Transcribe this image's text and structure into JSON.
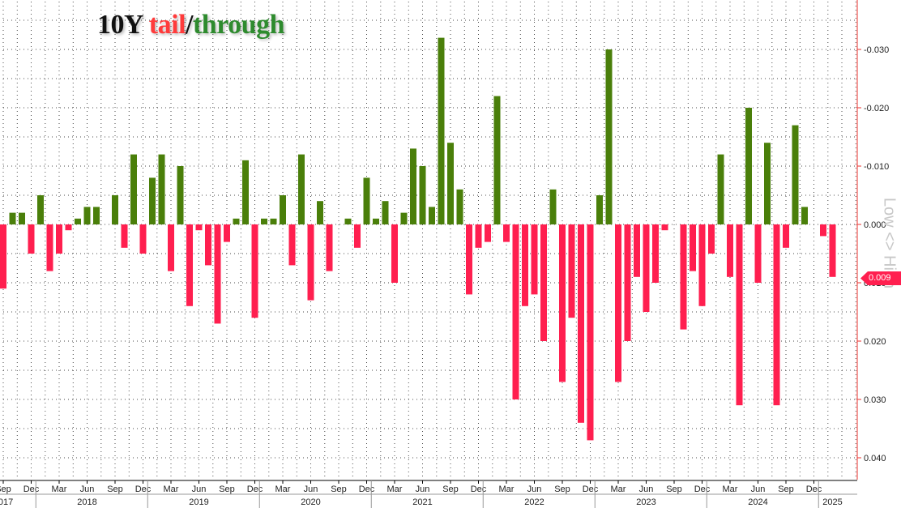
{
  "title": {
    "part1": "10Y ",
    "part2": "tail",
    "part3": "/",
    "part4": "through"
  },
  "axis_note": "Low <> High",
  "last_value_label": "0.009",
  "colors": {
    "tail": "#ff1f4f",
    "through": "#4a7f0a",
    "grid": "#4a4a4a",
    "axis": "#e8322e"
  },
  "chart_data": {
    "type": "bar",
    "title": "10Y tail/through",
    "y_axis_side": "right",
    "y_axis_inverted": true,
    "ylim": [
      -0.035,
      0.043
    ],
    "y_ticks": [
      -0.03,
      -0.02,
      -0.01,
      0.0,
      0.01,
      0.02,
      0.03,
      0.04
    ],
    "y_tick_labels": [
      "-0.030",
      "-0.020",
      "-0.010",
      "0.000",
      "0.010",
      "0.020",
      "0.030",
      "0.040"
    ],
    "grid": true,
    "x_start": "2017-09",
    "x_end": "2025-03",
    "month_labels": [
      {
        "date": "2017-09",
        "label": "Sep"
      },
      {
        "date": "2017-12",
        "label": "Dec"
      },
      {
        "date": "2018-03",
        "label": "Mar"
      },
      {
        "date": "2018-06",
        "label": "Jun"
      },
      {
        "date": "2018-09",
        "label": "Sep"
      },
      {
        "date": "2018-12",
        "label": "Dec"
      },
      {
        "date": "2019-03",
        "label": "Mar"
      },
      {
        "date": "2019-06",
        "label": "Jun"
      },
      {
        "date": "2019-09",
        "label": "Sep"
      },
      {
        "date": "2019-12",
        "label": "Dec"
      },
      {
        "date": "2020-03",
        "label": "Mar"
      },
      {
        "date": "2020-06",
        "label": "Jun"
      },
      {
        "date": "2020-09",
        "label": "Sep"
      },
      {
        "date": "2020-12",
        "label": "Dec"
      },
      {
        "date": "2021-03",
        "label": "Mar"
      },
      {
        "date": "2021-06",
        "label": "Jun"
      },
      {
        "date": "2021-09",
        "label": "Sep"
      },
      {
        "date": "2021-12",
        "label": "Dec"
      },
      {
        "date": "2022-03",
        "label": "Mar"
      },
      {
        "date": "2022-06",
        "label": "Jun"
      },
      {
        "date": "2022-09",
        "label": "Sep"
      },
      {
        "date": "2022-12",
        "label": "Dec"
      },
      {
        "date": "2023-03",
        "label": "Mar"
      },
      {
        "date": "2023-06",
        "label": "Jun"
      },
      {
        "date": "2023-09",
        "label": "Sep"
      },
      {
        "date": "2023-12",
        "label": "Dec"
      },
      {
        "date": "2024-03",
        "label": "Mar"
      },
      {
        "date": "2024-06",
        "label": "Jun"
      },
      {
        "date": "2024-09",
        "label": "Sep"
      },
      {
        "date": "2024-12",
        "label": "Dec"
      }
    ],
    "year_labels": [
      {
        "date": "2017-09",
        "label": "2017"
      },
      {
        "date": "2018-06",
        "label": "2018"
      },
      {
        "date": "2019-06",
        "label": "2019"
      },
      {
        "date": "2020-06",
        "label": "2020"
      },
      {
        "date": "2021-06",
        "label": "2021"
      },
      {
        "date": "2022-06",
        "label": "2022"
      },
      {
        "date": "2023-06",
        "label": "2023"
      },
      {
        "date": "2024-06",
        "label": "2024"
      },
      {
        "date": "2025-02",
        "label": "2025"
      }
    ],
    "year_dividers": [
      "2018-01",
      "2019-01",
      "2020-01",
      "2021-01",
      "2022-01",
      "2023-01",
      "2024-01",
      "2025-01"
    ],
    "series": [
      {
        "x": [
          "2017-09",
          "2017-10",
          "2017-11",
          "2017-12",
          "2018-01",
          "2018-02",
          "2018-03",
          "2018-04",
          "2018-05",
          "2018-06",
          "2018-07",
          "2018-08",
          "2018-09",
          "2018-10",
          "2018-11",
          "2018-12",
          "2019-01",
          "2019-02",
          "2019-03",
          "2019-04",
          "2019-05",
          "2019-06",
          "2019-07",
          "2019-08",
          "2019-09",
          "2019-10",
          "2019-11",
          "2019-12",
          "2020-01",
          "2020-02",
          "2020-03",
          "2020-04",
          "2020-05",
          "2020-06",
          "2020-07",
          "2020-08",
          "2020-09",
          "2020-10",
          "2020-11",
          "2020-12",
          "2021-01",
          "2021-02",
          "2021-03",
          "2021-04",
          "2021-05",
          "2021-06",
          "2021-07",
          "2021-08",
          "2021-09",
          "2021-10",
          "2021-11",
          "2021-12",
          "2022-01",
          "2022-02",
          "2022-03",
          "2022-04",
          "2022-05",
          "2022-06",
          "2022-07",
          "2022-08",
          "2022-09",
          "2022-10",
          "2022-11",
          "2022-12",
          "2023-01",
          "2023-02",
          "2023-03",
          "2023-04",
          "2023-05",
          "2023-06",
          "2023-07",
          "2023-08",
          "2023-09",
          "2023-10",
          "2023-11",
          "2023-12",
          "2024-01",
          "2024-02",
          "2024-03",
          "2024-04",
          "2024-05",
          "2024-06",
          "2024-07",
          "2024-08",
          "2024-09",
          "2024-10",
          "2024-11",
          "2024-12",
          "2025-01",
          "2025-02"
        ],
        "values": [
          0.011,
          -0.002,
          -0.002,
          0.005,
          -0.005,
          0.008,
          0.005,
          0.001,
          -0.001,
          -0.003,
          -0.003,
          0.0,
          -0.005,
          0.004,
          -0.012,
          0.005,
          -0.008,
          -0.012,
          0.008,
          -0.01,
          0.014,
          0.001,
          0.007,
          0.017,
          0.003,
          -0.001,
          -0.011,
          0.016,
          -0.001,
          -0.001,
          -0.005,
          0.007,
          -0.012,
          0.013,
          -0.004,
          0.008,
          0.0,
          -0.001,
          0.004,
          -0.008,
          -0.001,
          -0.004,
          0.01,
          -0.002,
          -0.013,
          -0.01,
          -0.003,
          -0.032,
          -0.014,
          -0.006,
          0.012,
          0.004,
          0.003,
          -0.022,
          0.003,
          0.03,
          0.014,
          0.012,
          0.02,
          -0.006,
          0.027,
          0.016,
          0.034,
          0.037,
          -0.005,
          -0.03,
          0.027,
          0.02,
          0.009,
          0.015,
          0.01,
          0.001,
          0.0,
          0.018,
          0.008,
          0.014,
          0.005,
          -0.012,
          0.009,
          0.031,
          -0.02,
          0.01,
          -0.014,
          0.031,
          0.004,
          -0.017,
          -0.003,
          0.0,
          0.002,
          0.009
        ]
      }
    ]
  }
}
